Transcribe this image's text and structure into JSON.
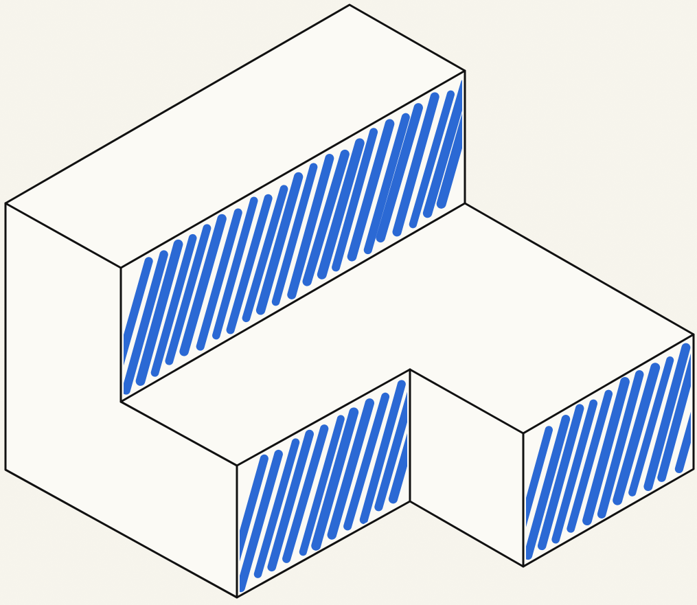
{
  "figure": {
    "kind": "isometric-block-sketch",
    "colors": {
      "paper": "#f8f6ee",
      "face": "#fbfaf5",
      "outline": "#111111",
      "hatch": "#1b5ed1"
    },
    "shaded_faces": [
      "upper-step-front-face",
      "lower-left-front-face",
      "right-arm-front-face"
    ]
  }
}
